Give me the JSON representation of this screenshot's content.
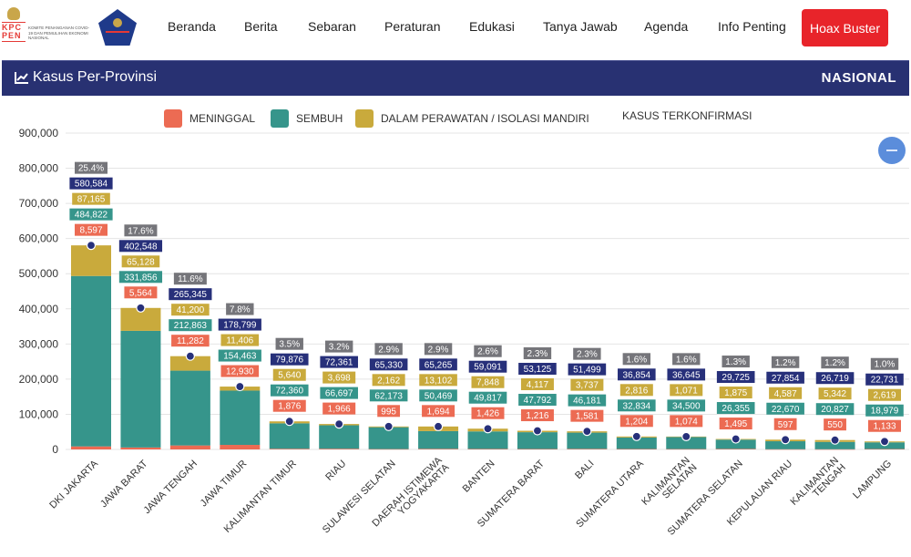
{
  "nav": {
    "logo_kpc_letters": "KPC PEN",
    "logo_kpc_caption": "KOMITE PENANGANAN COVID-19 DAN PEMULIHAN EKONOMI NASIONAL",
    "items": [
      "Beranda",
      "Berita",
      "Sebaran",
      "Peraturan",
      "Edukasi",
      "Tanya Jawab",
      "Agenda",
      "Info Penting"
    ],
    "hoax_button": "Hoax Buster"
  },
  "header": {
    "icon": "line-chart-icon",
    "title": "Kasus Per-Provinsi",
    "scope": "NASIONAL"
  },
  "colors": {
    "meninggal": "#ec6b53",
    "sembuh": "#36958b",
    "perawatan": "#c9aa3c",
    "terkonfirmasi": "#27307a",
    "percent": "#75757a",
    "header": "#283172",
    "hoax": "#e8242a",
    "zoom_button": "#5b8ddb"
  },
  "zoom_button_icon": "minus-icon",
  "chart_data": {
    "type": "bar",
    "stacked": true,
    "title": "Kasus Per-Provinsi",
    "xlabel": "",
    "ylabel": "",
    "ylim": [
      0,
      900000
    ],
    "yticks": [
      0,
      100000,
      200000,
      300000,
      400000,
      500000,
      600000,
      700000,
      800000,
      900000
    ],
    "ytick_labels": [
      "0",
      "100,000",
      "200,000",
      "300,000",
      "400,000",
      "500,000",
      "600,000",
      "700,000",
      "800,000",
      "900,000"
    ],
    "grid": true,
    "legend_position": "top-center",
    "legend": [
      "MENINGGAL",
      "SEMBUH",
      "DALAM PERAWATAN / ISOLASI MANDIRI",
      "KASUS TERKONFIRMASI"
    ],
    "categories": [
      "DKI JAKARTA",
      "JAWA BARAT",
      "JAWA TENGAH",
      "JAWA TIMUR",
      "KALIMANTAN TIMUR",
      "RIAU",
      "SULAWESI SELATAN",
      "DAERAH ISTIMEWA YOGYAKARTA",
      "BANTEN",
      "SUMATERA BARAT",
      "BALI",
      "SUMATERA UTARA",
      "KALIMANTAN SELATAN",
      "SUMATERA SELATAN",
      "KEPULAUAN RIAU",
      "KALIMANTAN TENGAH",
      "LAMPUNG"
    ],
    "category_lines": [
      [
        "DKI JAKARTA"
      ],
      [
        "JAWA BARAT"
      ],
      [
        "JAWA TENGAH"
      ],
      [
        "JAWA TIMUR"
      ],
      [
        "KALIMANTAN TIMUR"
      ],
      [
        "RIAU"
      ],
      [
        "SULAWESI SELATAN"
      ],
      [
        "DAERAH ISTIMEWA",
        "YOGYAKARTA"
      ],
      [
        "BANTEN"
      ],
      [
        "SUMATERA BARAT"
      ],
      [
        "BALI"
      ],
      [
        "SUMATERA UTARA"
      ],
      [
        "KALIMANTAN",
        "SELATAN"
      ],
      [
        "SUMATERA SELATAN"
      ],
      [
        "KEPULAUAN RIAU"
      ],
      [
        "KALIMANTAN",
        "TENGAH"
      ],
      [
        "LAMPUNG"
      ]
    ],
    "series": [
      {
        "name": "MENINGGAL",
        "kind": "bar",
        "values": [
          8597,
          5564,
          11282,
          12930,
          1876,
          1966,
          995,
          1694,
          1426,
          1216,
          1581,
          1204,
          1074,
          1495,
          597,
          550,
          1133
        ],
        "labels": [
          "8,597",
          "5,564",
          "11,282",
          "12,930",
          "1,876",
          "1,966",
          "995",
          "1,694",
          "1,426",
          "1,216",
          "1,581",
          "1,204",
          "1,074",
          "1,495",
          "597",
          "550",
          "1,133"
        ]
      },
      {
        "name": "SEMBUH",
        "kind": "bar",
        "values": [
          484822,
          331856,
          212863,
          154463,
          72360,
          66697,
          62173,
          50469,
          49817,
          47792,
          46181,
          32834,
          34500,
          26355,
          22670,
          20827,
          18979
        ],
        "labels": [
          "484,822",
          "331,856",
          "212,863",
          "154,463",
          "72,360",
          "66,697",
          "62,173",
          "50,469",
          "49,817",
          "47,792",
          "46,181",
          "32,834",
          "34,500",
          "26,355",
          "22,670",
          "20,827",
          "18,979"
        ]
      },
      {
        "name": "DALAM PERAWATAN / ISOLASI MANDIRI",
        "kind": "bar",
        "values": [
          87165,
          65128,
          41200,
          11406,
          5640,
          3698,
          2162,
          13102,
          7848,
          4117,
          3737,
          2816,
          1071,
          1875,
          4587,
          5342,
          2619
        ],
        "labels": [
          "87,165",
          "65,128",
          "41,200",
          "11,406",
          "5,640",
          "3,698",
          "2,162",
          "13,102",
          "7,848",
          "4,117",
          "3,737",
          "2,816",
          "1,071",
          "1,875",
          "4,587",
          "5,342",
          "2,619"
        ]
      },
      {
        "name": "KASUS TERKONFIRMASI",
        "kind": "point",
        "values": [
          580584,
          402548,
          265345,
          178799,
          79876,
          72361,
          65330,
          65265,
          59091,
          53125,
          51499,
          36854,
          36645,
          29725,
          27854,
          26719,
          22731
        ],
        "labels": [
          "580,584",
          "402,548",
          "265,345",
          "178,799",
          "79,876",
          "72,361",
          "65,330",
          "65,265",
          "59,091",
          "53,125",
          "51,499",
          "36,854",
          "36,645",
          "29,725",
          "27,854",
          "26,719",
          "22,731"
        ]
      }
    ],
    "percent_share": [
      25.4,
      17.6,
      11.6,
      7.8,
      3.5,
      3.2,
      2.9,
      2.9,
      2.6,
      2.3,
      2.3,
      1.6,
      1.6,
      1.3,
      1.2,
      1.2,
      1.0
    ],
    "percent_labels": [
      "25.4%",
      "17.6%",
      "11.6%",
      "7.8%",
      "3.5%",
      "3.2%",
      "2.9%",
      "2.9%",
      "2.6%",
      "2.3%",
      "2.3%",
      "1.6%",
      "1.6%",
      "1.3%",
      "1.2%",
      "1.2%",
      "1.0%"
    ]
  }
}
